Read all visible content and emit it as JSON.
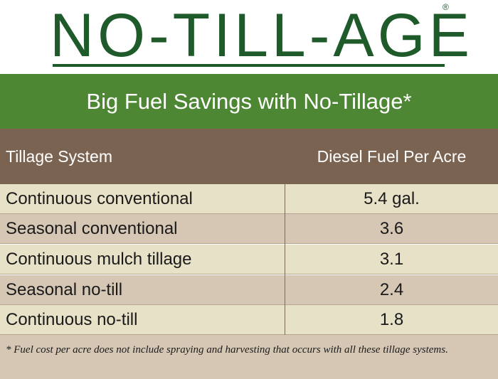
{
  "logo": {
    "text": "NO-TILL-AGE",
    "registered_mark": "®"
  },
  "banner": {
    "title": "Big Fuel Savings with No-Tillage*"
  },
  "table": {
    "headers": [
      "Tillage System",
      "Diesel Fuel Per Acre"
    ],
    "rows": [
      [
        "Continuous conventional",
        "5.4 gal."
      ],
      [
        "Seasonal conventional",
        "3.6"
      ],
      [
        "Continuous mulch tillage",
        "3.1"
      ],
      [
        "Seasonal no-till",
        "2.4"
      ],
      [
        "Continuous no-till",
        "1.8"
      ]
    ]
  },
  "footnote": "* Fuel cost per acre does not include spraying and harvesting that occurs with all these tillage systems.",
  "colors": {
    "logo_green": "#1f5b2a",
    "banner_green": "#4e8733",
    "header_brown": "#7b6352",
    "row_light": "#e7e1c7",
    "row_dark": "#d6c7b5"
  }
}
